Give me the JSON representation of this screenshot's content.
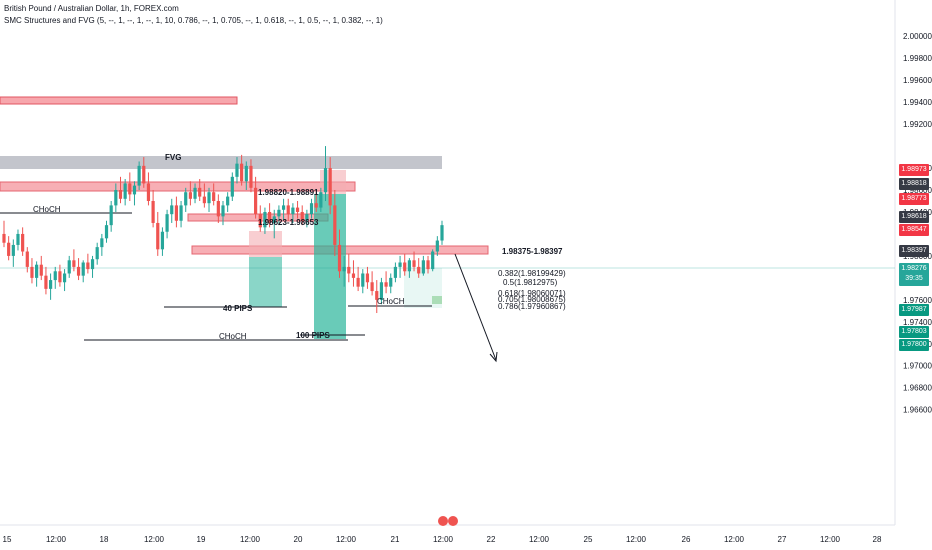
{
  "header": {
    "symbol_line": "British Pound / Australian Dollar, 1h, FOREX.com",
    "indicator_line": "SMC Structures and FVG (5, --, 1, --, 1, --, 1, 10, 0.786, --, 1, 0.705, --, 1, 0.618, --, 1, 0.5, --, 1, 0.382, --, 1)"
  },
  "colors": {
    "up": "#26a69a",
    "down": "#ef5350",
    "zone_red": "#f7a7ad",
    "zone_green": "#2ab59a",
    "fvg_gray": "#b2b5be"
  },
  "chart_data": {
    "type": "candlestick",
    "symbol": "British Pound / Australian Dollar",
    "timeframe": "1h",
    "y_axis": {
      "range": [
        1.9555,
        2.0033
      ],
      "ticks": [
        "2.00000",
        "1.99800",
        "1.99600",
        "1.99400",
        "1.99200",
        "1.98800",
        "1.98600",
        "1.98400",
        "1.98000",
        "1.97600",
        "1.97400",
        "1.97200",
        "1.97000",
        "1.96800",
        "1.96600"
      ]
    },
    "x_axis": {
      "ticks": [
        "15",
        "12:00",
        "18",
        "12:00",
        "19",
        "12:00",
        "20",
        "12:00",
        "21",
        "12:00",
        "22",
        "12:00",
        "25",
        "12:00",
        "26",
        "12:00",
        "27",
        "12:00",
        "28"
      ]
    },
    "candles": [
      [
        1.982,
        1.9832,
        1.9808,
        1.9812
      ],
      [
        1.9812,
        1.9818,
        1.9796,
        1.98
      ],
      [
        1.98,
        1.9815,
        1.979,
        1.981
      ],
      [
        1.981,
        1.9824,
        1.9805,
        1.982
      ],
      [
        1.982,
        1.9826,
        1.98,
        1.9804
      ],
      [
        1.9804,
        1.9808,
        1.9785,
        1.979
      ],
      [
        1.979,
        1.9798,
        1.9775,
        1.978
      ],
      [
        1.978,
        1.9795,
        1.9772,
        1.9792
      ],
      [
        1.9792,
        1.98,
        1.9778,
        1.9782
      ],
      [
        1.9782,
        1.979,
        1.9765,
        1.977
      ],
      [
        1.977,
        1.9784,
        1.976,
        1.9778
      ],
      [
        1.9778,
        1.979,
        1.977,
        1.9786
      ],
      [
        1.9786,
        1.9792,
        1.9772,
        1.9776
      ],
      [
        1.9776,
        1.9788,
        1.9768,
        1.9784
      ],
      [
        1.9784,
        1.98,
        1.978,
        1.9796
      ],
      [
        1.9796,
        1.9806,
        1.9786,
        1.979
      ],
      [
        1.979,
        1.9798,
        1.9778,
        1.9782
      ],
      [
        1.9782,
        1.9796,
        1.9776,
        1.9794
      ],
      [
        1.9794,
        1.9802,
        1.9784,
        1.9788
      ],
      [
        1.9788,
        1.98,
        1.978,
        1.9797
      ],
      [
        1.9797,
        1.9812,
        1.9792,
        1.9808
      ],
      [
        1.9808,
        1.982,
        1.98,
        1.9816
      ],
      [
        1.9816,
        1.9832,
        1.9812,
        1.9828
      ],
      [
        1.9828,
        1.985,
        1.9822,
        1.9846
      ],
      [
        1.9846,
        1.9866,
        1.984,
        1.986
      ],
      [
        1.986,
        1.9872,
        1.9848,
        1.9852
      ],
      [
        1.9852,
        1.987,
        1.9846,
        1.9866
      ],
      [
        1.9866,
        1.9876,
        1.985,
        1.9856
      ],
      [
        1.9856,
        1.9868,
        1.9846,
        1.9864
      ],
      [
        1.9864,
        1.9886,
        1.986,
        1.9882
      ],
      [
        1.9882,
        1.989,
        1.9862,
        1.9866
      ],
      [
        1.9866,
        1.9876,
        1.9846,
        1.985
      ],
      [
        1.985,
        1.986,
        1.9826,
        1.983
      ],
      [
        1.983,
        1.984,
        1.98,
        1.9806
      ],
      [
        1.9806,
        1.9826,
        1.98,
        1.9822
      ],
      [
        1.9822,
        1.9842,
        1.9816,
        1.9838
      ],
      [
        1.9838,
        1.9852,
        1.983,
        1.9846
      ],
      [
        1.9846,
        1.9854,
        1.9826,
        1.9832
      ],
      [
        1.9832,
        1.985,
        1.9826,
        1.9846
      ],
      [
        1.9846,
        1.9862,
        1.984,
        1.9858
      ],
      [
        1.9858,
        1.9868,
        1.9846,
        1.9852
      ],
      [
        1.9852,
        1.9866,
        1.9848,
        1.9862
      ],
      [
        1.9862,
        1.987,
        1.985,
        1.9854
      ],
      [
        1.9854,
        1.9866,
        1.9844,
        1.9848
      ],
      [
        1.9848,
        1.9862,
        1.984,
        1.9858
      ],
      [
        1.9858,
        1.9866,
        1.9846,
        1.985
      ],
      [
        1.985,
        1.9856,
        1.983,
        1.9836
      ],
      [
        1.9836,
        1.985,
        1.9828,
        1.9846
      ],
      [
        1.9846,
        1.9858,
        1.984,
        1.9854
      ],
      [
        1.9854,
        1.9876,
        1.985,
        1.9872
      ],
      [
        1.9872,
        1.989,
        1.9866,
        1.9884
      ],
      [
        1.9884,
        1.9892,
        1.9864,
        1.9868
      ],
      [
        1.9868,
        1.9886,
        1.986,
        1.9882
      ],
      [
        1.9882,
        1.9888,
        1.9858,
        1.9862
      ],
      [
        1.9862,
        1.9872,
        1.9834,
        1.9838
      ],
      [
        1.9838,
        1.9846,
        1.9822,
        1.9826
      ],
      [
        1.9826,
        1.9844,
        1.982,
        1.984
      ],
      [
        1.984,
        1.9848,
        1.9826,
        1.983
      ],
      [
        1.983,
        1.9842,
        1.9816,
        1.9836
      ],
      [
        1.9836,
        1.9846,
        1.9828,
        1.9842
      ],
      [
        1.9842,
        1.9852,
        1.9832,
        1.9846
      ],
      [
        1.9846,
        1.9852,
        1.9832,
        1.9838
      ],
      [
        1.9838,
        1.9848,
        1.983,
        1.9844
      ],
      [
        1.9844,
        1.985,
        1.9834,
        1.984
      ],
      [
        1.984,
        1.9846,
        1.9828,
        1.9832
      ],
      [
        1.9832,
        1.9842,
        1.9826,
        1.9838
      ],
      [
        1.9838,
        1.9852,
        1.9834,
        1.9848
      ],
      [
        1.9848,
        1.9858,
        1.984,
        1.9844
      ],
      [
        1.9844,
        1.9862,
        1.984,
        1.9858
      ],
      [
        1.9858,
        1.99,
        1.985,
        1.988
      ],
      [
        1.988,
        1.989,
        1.9838,
        1.9846
      ],
      [
        1.9846,
        1.986,
        1.98,
        1.981
      ],
      [
        1.981,
        1.9824,
        1.978,
        1.9786
      ],
      [
        1.9786,
        1.98,
        1.9772,
        1.979
      ],
      [
        1.979,
        1.9802,
        1.9776,
        1.9784
      ],
      [
        1.9784,
        1.9796,
        1.9772,
        1.978
      ],
      [
        1.978,
        1.979,
        1.9768,
        1.9772
      ],
      [
        1.9772,
        1.9788,
        1.9766,
        1.9784
      ],
      [
        1.9784,
        1.979,
        1.977,
        1.9776
      ],
      [
        1.9776,
        1.9786,
        1.9764,
        1.9768
      ],
      [
        1.9768,
        1.9778,
        1.9748,
        1.976
      ],
      [
        1.976,
        1.978,
        1.9756,
        1.9776
      ],
      [
        1.9776,
        1.9786,
        1.9766,
        1.9772
      ],
      [
        1.9772,
        1.9784,
        1.9766,
        1.978
      ],
      [
        1.978,
        1.9794,
        1.9776,
        1.979
      ],
      [
        1.979,
        1.98,
        1.978,
        1.9794
      ],
      [
        1.9794,
        1.9802,
        1.9782,
        1.9786
      ],
      [
        1.9786,
        1.9798,
        1.978,
        1.9796
      ],
      [
        1.9796,
        1.9804,
        1.9786,
        1.979
      ],
      [
        1.979,
        1.9798,
        1.978,
        1.9784
      ],
      [
        1.9784,
        1.98,
        1.9782,
        1.9796
      ],
      [
        1.9796,
        1.98,
        1.9784,
        1.9788
      ],
      [
        1.9788,
        1.9806,
        1.9786,
        1.9804
      ],
      [
        1.9804,
        1.9818,
        1.98,
        1.9814
      ],
      [
        1.9814,
        1.9832,
        1.981,
        1.9828
      ]
    ],
    "zones": [
      {
        "label": "1.98820-1.98891",
        "low": 1.9882,
        "high": 1.98891,
        "color": "red"
      },
      {
        "label": "1.98623-1.98653",
        "low": 1.98623,
        "high": 1.98653,
        "color": "red"
      },
      {
        "label": "1.98375-1.98397",
        "low": 1.98375,
        "high": 1.98397,
        "color": "red"
      },
      {
        "label": "FVG",
        "low": 1.9898,
        "high": 1.9904,
        "color": "gray"
      }
    ],
    "measurements": [
      {
        "label": "40 PIPS",
        "color": "green"
      },
      {
        "label": "100 PIPS",
        "color": "green"
      }
    ],
    "structure_labels": [
      "CHoCH",
      "CHoCH",
      "CHoCH"
    ],
    "fib_levels": [
      {
        "label": "0.382(1.98199429)",
        "color": "#26a69a"
      },
      {
        "label": "0.5(1.9812975)",
        "color": "#26a69a"
      },
      {
        "label": "0.618(1.98060071)",
        "color": "#26a69a"
      },
      {
        "label": "0.705(1.98008675)",
        "color": "#ef5350"
      },
      {
        "label": "0.786(1.97960867)",
        "color": "#26a69a"
      }
    ],
    "price_labels": [
      {
        "text": "1.98973",
        "kind": "red"
      },
      {
        "text": "1.98818",
        "kind": "gray"
      },
      {
        "text": "1.98773",
        "kind": "red"
      },
      {
        "text": "1.98618",
        "kind": "gray"
      },
      {
        "text": "1.98547",
        "kind": "red"
      },
      {
        "text": "1.98397",
        "kind": "gray"
      },
      {
        "text": "1.98276",
        "kind": "current",
        "sub": "39:35"
      },
      {
        "text": "1.97987",
        "kind": "green"
      },
      {
        "text": "1.97803",
        "kind": "green"
      },
      {
        "text": "1.97800",
        "kind": "green"
      }
    ]
  }
}
